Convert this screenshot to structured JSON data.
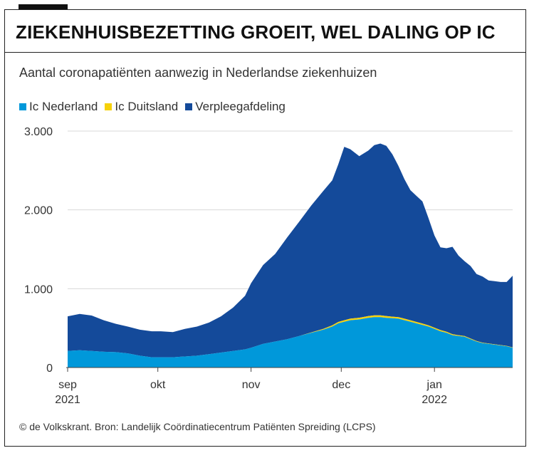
{
  "header": {
    "title": "ZIEKENHUISBEZETTING GROEIT, WEL DALING OP IC",
    "subtitle": "Aantal coronapatiënten aanwezig in Nederlandse ziekenhuizen"
  },
  "footer": {
    "source": "© de Volkskrant. Bron: Landelijk Coördinatiecentrum Patiënten Spreiding (LCPS)"
  },
  "colors": {
    "ic_nl": "#0098da",
    "ic_de": "#f6d10a",
    "ward": "#144a9a",
    "grid": "#d8d8d8",
    "axis": "#444444"
  },
  "chart_data": {
    "type": "area",
    "stacked": true,
    "legend": [
      "Ic Nederland",
      "Ic Duitsland",
      "Verpleegafdeling"
    ],
    "ylim": [
      0,
      3000
    ],
    "yticks": [
      0,
      1000,
      2000,
      3000
    ],
    "ytick_labels": [
      "0",
      "1.000",
      "2.000",
      "3.000"
    ],
    "xlim": [
      0,
      148
    ],
    "xticks": [
      {
        "day": 0,
        "label": "sep",
        "sublabel": "2021"
      },
      {
        "day": 30,
        "label": "okt",
        "sublabel": ""
      },
      {
        "day": 61,
        "label": "nov",
        "sublabel": ""
      },
      {
        "day": 91,
        "label": "dec",
        "sublabel": ""
      },
      {
        "day": 122,
        "label": "jan",
        "sublabel": "2022"
      }
    ],
    "x": [
      0,
      4,
      8,
      12,
      16,
      20,
      24,
      28,
      31,
      35,
      39,
      43,
      47,
      51,
      55,
      59,
      61,
      65,
      69,
      73,
      77,
      81,
      85,
      88,
      90,
      92,
      94,
      97,
      100,
      102,
      104,
      106,
      108,
      110,
      112,
      114,
      116,
      118,
      120,
      122,
      124,
      126,
      128,
      130,
      132,
      134,
      136,
      138,
      140,
      142,
      144,
      146,
      148
    ],
    "series": [
      {
        "name": "Ic Nederland",
        "values": [
          210,
          220,
          210,
          200,
          195,
          180,
          150,
          130,
          130,
          130,
          140,
          150,
          170,
          190,
          210,
          230,
          250,
          300,
          330,
          360,
          400,
          440,
          480,
          520,
          560,
          580,
          600,
          610,
          630,
          640,
          640,
          630,
          625,
          620,
          600,
          580,
          560,
          540,
          520,
          490,
          460,
          440,
          410,
          400,
          390,
          360,
          330,
          310,
          300,
          290,
          280,
          270,
          250
        ]
      },
      {
        "name": "Ic Duitsland",
        "values": [
          0,
          0,
          0,
          0,
          0,
          0,
          0,
          0,
          0,
          0,
          0,
          0,
          0,
          0,
          0,
          0,
          0,
          0,
          0,
          0,
          0,
          5,
          10,
          15,
          18,
          20,
          20,
          22,
          22,
          22,
          22,
          22,
          20,
          20,
          20,
          20,
          18,
          18,
          16,
          15,
          15,
          14,
          12,
          10,
          10,
          8,
          6,
          5,
          5,
          5,
          5,
          5,
          5
        ]
      },
      {
        "name": "Verpleegafdeling",
        "values": [
          440,
          460,
          450,
          400,
          360,
          340,
          330,
          330,
          330,
          320,
          350,
          370,
          400,
          460,
          550,
          680,
          820,
          1000,
          1110,
          1290,
          1450,
          1610,
          1750,
          1840,
          2000,
          2200,
          2150,
          2050,
          2100,
          2160,
          2180,
          2160,
          2060,
          1920,
          1770,
          1650,
          1600,
          1550,
          1360,
          1170,
          1050,
          1060,
          1110,
          1010,
          950,
          920,
          850,
          840,
          800,
          800,
          800,
          810,
          910
        ]
      }
    ]
  }
}
